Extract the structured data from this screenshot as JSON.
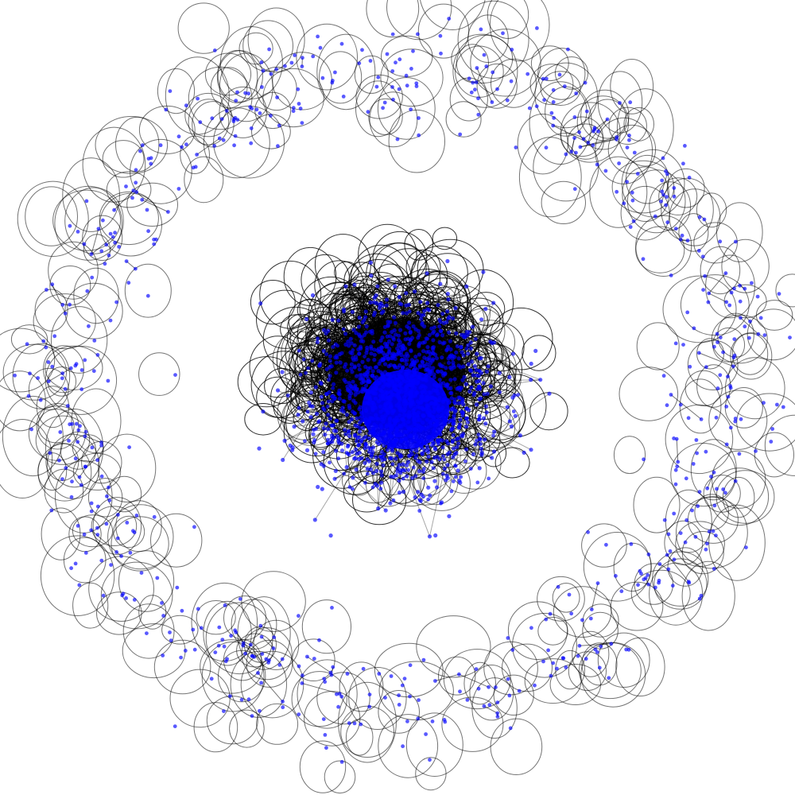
{
  "diagram": {
    "type": "network-graph",
    "layout": "spring",
    "background_color": "#ffffff",
    "components": [
      {
        "name": "peripheral-ring",
        "description_shape": "ring"
      },
      {
        "name": "central-cluster",
        "description_shape": "dense-cluster"
      }
    ],
    "nodes": {
      "color": "#0000ff",
      "opacity": 0.65
    },
    "edges": {
      "color": "#000000",
      "opacity": 0.55,
      "style": "self-loops-and-curved-edges"
    }
  }
}
